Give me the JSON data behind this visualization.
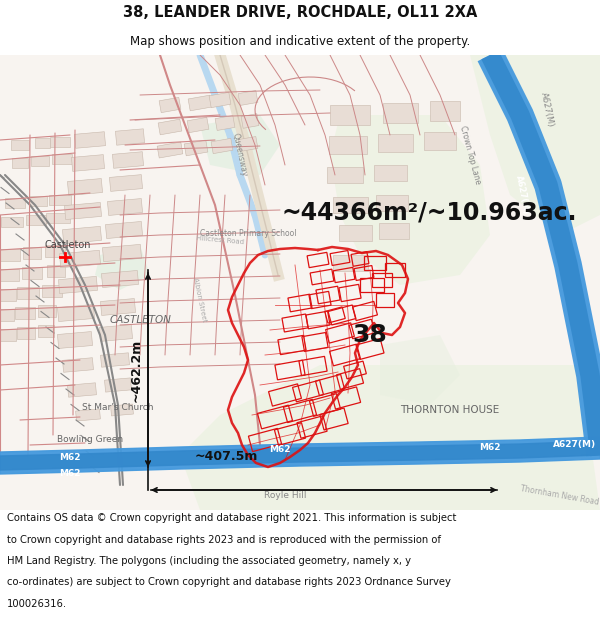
{
  "title_line1": "38, LEANDER DRIVE, ROCHDALE, OL11 2XA",
  "title_line2": "Map shows position and indicative extent of the property.",
  "area_text": "~44366m²/~10.963ac.",
  "plot_number": "38",
  "scale_h": "~407.5m",
  "scale_v": "~462.2m",
  "footer_lines": [
    "Contains OS data © Crown copyright and database right 2021. This information is subject",
    "to Crown copyright and database rights 2023 and is reproduced with the permission of",
    "HM Land Registry. The polygons (including the associated geometry, namely x, y",
    "co-ordinates) are subject to Crown copyright and database rights 2023 Ordnance Survey",
    "100026316."
  ],
  "bg_color": "#ffffff",
  "map_bg": "#ffffff",
  "title_bg": "#ffffff",
  "footer_bg": "#ffffff",
  "text_dark": "#111111",
  "title_fontsize": 10.5,
  "subtitle_fontsize": 8.5,
  "area_fontsize": 17,
  "plot_num_fontsize": 18,
  "scale_fontsize": 9,
  "footer_fontsize": 7.2,
  "road_pink": "#f0c0b8",
  "road_red_outline": "#d08080",
  "building_fill": "#f5f0ec",
  "building_edge": "#c0a090",
  "highlight_red": "#dd1111",
  "motorway_blue": "#4499dd",
  "motorway_dark": "#2266aa",
  "water_blue": "#aaccee",
  "green_light": "#ddeedd",
  "green_med": "#ccdfc0",
  "label_gray": "#888888",
  "label_dark": "#555555",
  "scalebar_color": "#111111"
}
